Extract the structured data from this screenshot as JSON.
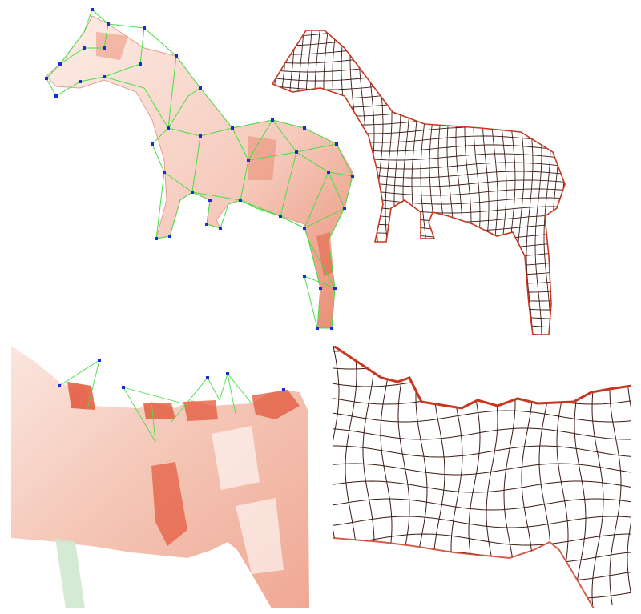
{
  "figure": {
    "panels": [
      {
        "id": "top-left",
        "content": "shaded-model-with-control-cage"
      },
      {
        "id": "top-right",
        "content": "quad-wireframe-mesh"
      },
      {
        "id": "bottom-left",
        "content": "zoomed-shaded-model-with-control-cage"
      },
      {
        "id": "bottom-right",
        "content": "zoomed-quad-wireframe-mesh"
      }
    ]
  },
  "colors": {
    "surface_light": "#fbe6df",
    "surface_mid": "#f2b7a6",
    "surface_dark": "#e2573b",
    "cage_edge": "#44e044",
    "cage_vertex": "#1a2ad8",
    "wire_dark": "#3b1a14",
    "wire_red": "#c8361e",
    "background": "#ffffff"
  }
}
